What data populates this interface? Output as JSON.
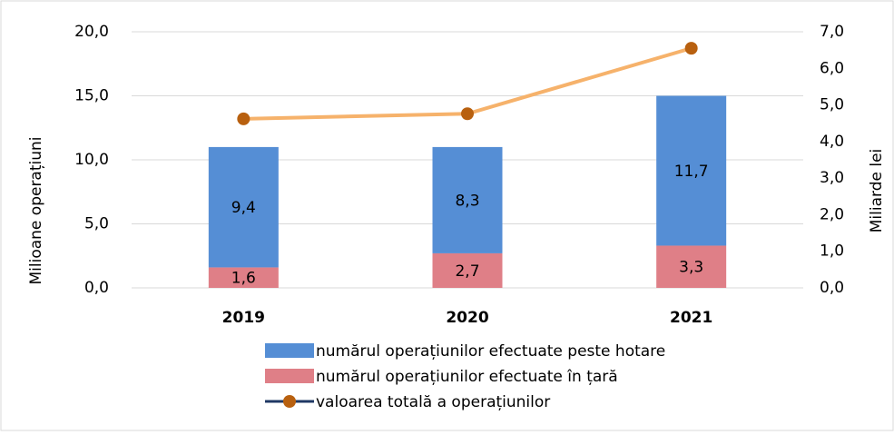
{
  "chart_data": {
    "type": "bar",
    "categories": [
      "2019",
      "2020",
      "2021"
    ],
    "series": [
      {
        "name": "numărul operațiunilor efectuate în țară",
        "color": "#df7f87",
        "values": [
          1.6,
          2.7,
          3.3
        ],
        "value_labels": [
          "1,6",
          "2,7",
          "3,3"
        ]
      },
      {
        "name": "numărul operațiunilor efectuate peste hotare",
        "color": "#558ed5",
        "values": [
          9.4,
          8.3,
          11.7
        ],
        "value_labels": [
          "9,4",
          "8,3",
          "11,7"
        ]
      },
      {
        "name": "valoarea totală a operațiunilor",
        "type": "line",
        "axis": "y2",
        "color": "#f6b26b",
        "marker_color": "#b8600f",
        "values": [
          4.62,
          4.76,
          6.55
        ]
      }
    ],
    "ylabel": "Milioane operațiuni",
    "y2label": "Miliarde lei",
    "ylim": [
      0,
      20
    ],
    "yticks": [
      {
        "value": 0,
        "label": "0,0"
      },
      {
        "value": 5,
        "label": "5,0"
      },
      {
        "value": 10,
        "label": "10,0"
      },
      {
        "value": 15,
        "label": "15,0"
      },
      {
        "value": 20,
        "label": "20,0"
      }
    ],
    "y2lim": [
      0,
      7
    ],
    "y2ticks": [
      {
        "value": 0,
        "label": "0,0"
      },
      {
        "value": 1,
        "label": "1,0"
      },
      {
        "value": 2,
        "label": "2,0"
      },
      {
        "value": 3,
        "label": "3,0"
      },
      {
        "value": 4,
        "label": "4,0"
      },
      {
        "value": 5,
        "label": "5,0"
      },
      {
        "value": 6,
        "label": "6,0"
      },
      {
        "value": 7,
        "label": "7,0"
      }
    ],
    "grid": true,
    "stacked": true,
    "legend": "bottom"
  }
}
